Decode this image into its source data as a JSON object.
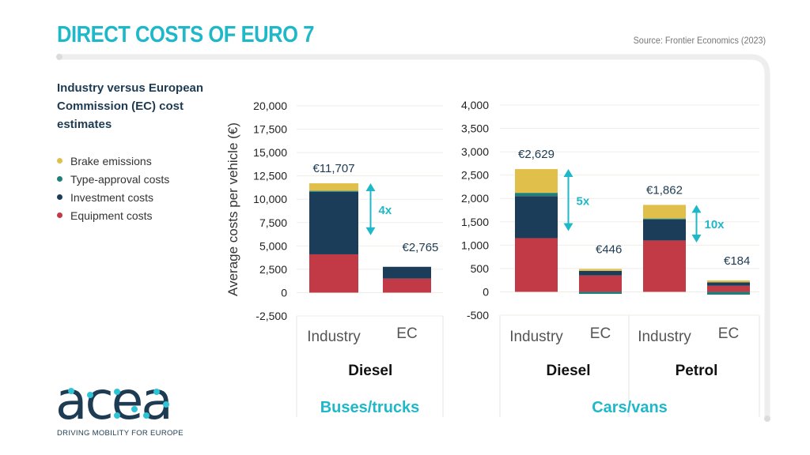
{
  "header": {
    "title": "DIRECT COSTS OF EURO 7",
    "source": "Source: Frontier Economics (2023)"
  },
  "subtitle": "Industry versus European Commission (EC) cost estimates",
  "legend": [
    {
      "label": "Brake emissions",
      "color": "#e0c04a"
    },
    {
      "label": "Type-approval costs",
      "color": "#1f7f7a"
    },
    {
      "label": "Investment costs",
      "color": "#1c3d5a"
    },
    {
      "label": "Equipment costs",
      "color": "#c23a45"
    }
  ],
  "logo": {
    "text": "acea",
    "tagline": "DRIVING MOBILITY FOR EUROPE"
  },
  "chart_data": [
    {
      "type": "bar",
      "stacked": true,
      "title": "Buses/trucks",
      "ylabel": "Average costs per vehicle (€)",
      "ylim": [
        -2500,
        20000
      ],
      "yticks": [
        "-2,500",
        "0",
        "2,500",
        "5,000",
        "7,500",
        "10,000",
        "12,500",
        "15,000",
        "17,500",
        "20,000"
      ],
      "groups": [
        {
          "label": "Diesel",
          "categories": [
            "Industry",
            "EC"
          ]
        }
      ],
      "series": [
        {
          "name": "Equipment costs",
          "values": [
            4100,
            1500
          ]
        },
        {
          "name": "Investment costs",
          "values": [
            6700,
            1265
          ]
        },
        {
          "name": "Type-approval costs",
          "values": [
            100,
            0
          ]
        },
        {
          "name": "Brake emissions",
          "values": [
            807,
            0
          ]
        }
      ],
      "totals": [
        "€11,707",
        "€2,765"
      ],
      "ratios": [
        "4x"
      ]
    },
    {
      "type": "bar",
      "stacked": true,
      "title": "Cars/vans",
      "ylim": [
        -500,
        4000
      ],
      "yticks": [
        "-500",
        "0",
        "500",
        "1,000",
        "1,500",
        "2,000",
        "2,500",
        "3,000",
        "3,500",
        "4,000"
      ],
      "groups": [
        {
          "label": "Diesel",
          "categories": [
            "Industry",
            "EC"
          ]
        },
        {
          "label": "Petrol",
          "categories": [
            "Industry",
            "EC"
          ]
        }
      ],
      "series": [
        {
          "name": "Equipment costs",
          "values": [
            1150,
            350,
            1100,
            130
          ]
        },
        {
          "name": "Investment costs",
          "values": [
            900,
            100,
            450,
            75
          ]
        },
        {
          "name": "Type-approval costs",
          "values": [
            70,
            -44,
            20,
            -60
          ]
        },
        {
          "name": "Brake emissions",
          "values": [
            509,
            40,
            292,
            39
          ]
        }
      ],
      "totals": [
        "€2,629",
        "€446",
        "€1,862",
        "€184"
      ],
      "ratios": [
        "5x",
        "10x"
      ]
    }
  ],
  "colors": {
    "accent": "#1fb8c9",
    "arrow": "#1fb8c9",
    "text": "#1d3b52"
  }
}
